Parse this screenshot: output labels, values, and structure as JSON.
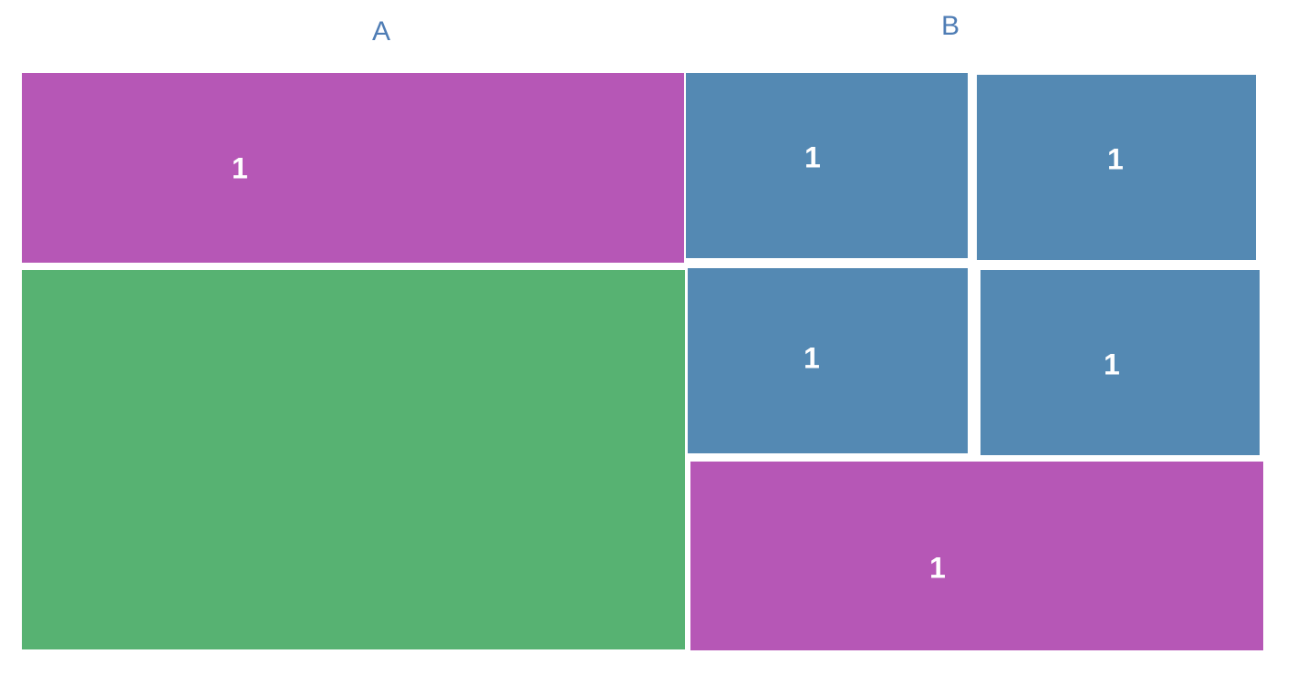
{
  "colors": {
    "heading": "#4f7db5",
    "purple": "#b657b6",
    "green": "#57b272",
    "blue": "#5489b3",
    "label": "#ffffff"
  },
  "columns": [
    {
      "title": "A",
      "blocks": [
        {
          "label": "1",
          "color": "purple"
        },
        {
          "label": "",
          "color": "green"
        }
      ]
    },
    {
      "title": "B",
      "blocks": [
        {
          "label": "1",
          "color": "blue"
        },
        {
          "label": "1",
          "color": "blue"
        },
        {
          "label": "1",
          "color": "blue"
        },
        {
          "label": "1",
          "color": "blue"
        },
        {
          "label": "1",
          "color": "purple"
        }
      ]
    }
  ]
}
